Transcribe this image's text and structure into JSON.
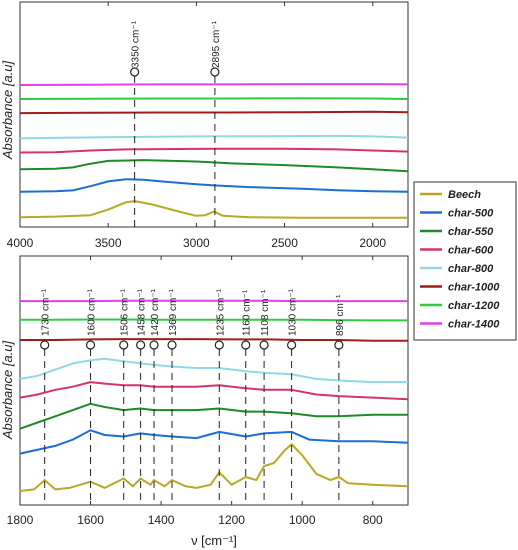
{
  "chart_data": [
    {
      "type": "line",
      "panel": "top",
      "ylabel": "Absorbance [a.u]",
      "xlabel": "",
      "xlim": [
        4000,
        1800
      ],
      "ylim": [
        0,
        8
      ],
      "xticks": [
        4000,
        3500,
        3000,
        2500,
        2000
      ],
      "annotations": [
        {
          "x": 3350,
          "label": "3350 cm⁻¹"
        },
        {
          "x": 2895,
          "label": "2895 cm⁻¹"
        }
      ],
      "series": [
        {
          "name": "Beech",
          "color": "#b8a824",
          "baseline": 0.35,
          "points": [
            [
              4000,
              0.35
            ],
            [
              3800,
              0.37
            ],
            [
              3600,
              0.42
            ],
            [
              3500,
              0.62
            ],
            [
              3400,
              0.88
            ],
            [
              3350,
              0.92
            ],
            [
              3250,
              0.8
            ],
            [
              3100,
              0.55
            ],
            [
              3000,
              0.4
            ],
            [
              2950,
              0.42
            ],
            [
              2900,
              0.55
            ],
            [
              2850,
              0.4
            ],
            [
              2700,
              0.35
            ],
            [
              2400,
              0.33
            ],
            [
              1800,
              0.33
            ]
          ]
        },
        {
          "name": "char-500",
          "color": "#1a6fd4",
          "baseline": 1.25,
          "points": [
            [
              4000,
              1.25
            ],
            [
              3800,
              1.27
            ],
            [
              3700,
              1.3
            ],
            [
              3600,
              1.45
            ],
            [
              3500,
              1.62
            ],
            [
              3400,
              1.7
            ],
            [
              3300,
              1.68
            ],
            [
              3200,
              1.62
            ],
            [
              3000,
              1.52
            ],
            [
              2900,
              1.48
            ],
            [
              2700,
              1.42
            ],
            [
              2400,
              1.36
            ],
            [
              2200,
              1.31
            ],
            [
              2000,
              1.27
            ],
            [
              1800,
              1.25
            ]
          ]
        },
        {
          "name": "char-550",
          "color": "#1f8a2a",
          "baseline": 2.05,
          "points": [
            [
              4000,
              2.05
            ],
            [
              3800,
              2.07
            ],
            [
              3700,
              2.12
            ],
            [
              3600,
              2.25
            ],
            [
              3500,
              2.35
            ],
            [
              3300,
              2.38
            ],
            [
              3000,
              2.33
            ],
            [
              2800,
              2.26
            ],
            [
              2500,
              2.2
            ],
            [
              2200,
              2.12
            ],
            [
              2000,
              2.05
            ],
            [
              1800,
              1.98
            ]
          ]
        },
        {
          "name": "char-600",
          "color": "#d6336c",
          "baseline": 2.65,
          "points": [
            [
              4000,
              2.65
            ],
            [
              3800,
              2.66
            ],
            [
              3600,
              2.72
            ],
            [
              3400,
              2.76
            ],
            [
              3200,
              2.77
            ],
            [
              2900,
              2.78
            ],
            [
              2500,
              2.78
            ],
            [
              2200,
              2.76
            ],
            [
              2000,
              2.72
            ],
            [
              1800,
              2.68
            ]
          ]
        },
        {
          "name": "char-800",
          "color": "#8fd8e8",
          "baseline": 3.15,
          "points": [
            [
              4000,
              3.15
            ],
            [
              3700,
              3.18
            ],
            [
              3400,
              3.2
            ],
            [
              3000,
              3.22
            ],
            [
              2600,
              3.23
            ],
            [
              2200,
              3.24
            ],
            [
              2000,
              3.22
            ],
            [
              1800,
              3.18
            ]
          ]
        },
        {
          "name": "char-1000",
          "color": "#a01c1c",
          "baseline": 4.05,
          "points": [
            [
              4000,
              4.05
            ],
            [
              3600,
              4.06
            ],
            [
              3200,
              4.07
            ],
            [
              2800,
              4.07
            ],
            [
              2400,
              4.08
            ],
            [
              2000,
              4.1
            ],
            [
              1800,
              4.08
            ]
          ]
        },
        {
          "name": "char-1200",
          "color": "#2ecc40",
          "baseline": 4.55,
          "points": [
            [
              4000,
              4.55
            ],
            [
              3600,
              4.56
            ],
            [
              3200,
              4.57
            ],
            [
              2800,
              4.57
            ],
            [
              2400,
              4.58
            ],
            [
              2000,
              4.57
            ],
            [
              1800,
              4.55
            ]
          ]
        },
        {
          "name": "char-1400",
          "color": "#e040e8",
          "baseline": 5.05,
          "points": [
            [
              4000,
              5.05
            ],
            [
              3600,
              5.06
            ],
            [
              3200,
              5.07
            ],
            [
              2800,
              5.07
            ],
            [
              2400,
              5.08
            ],
            [
              2000,
              5.08
            ],
            [
              1800,
              5.07
            ]
          ]
        }
      ]
    },
    {
      "type": "line",
      "panel": "bottom",
      "ylabel": "Absorbance [a.u]",
      "xlabel": "ν [cm⁻¹]",
      "xlim": [
        1800,
        700
      ],
      "ylim": [
        0,
        8
      ],
      "xticks": [
        1800,
        1600,
        1400,
        1200,
        1000,
        800
      ],
      "annotations": [
        {
          "x": 1730,
          "label": "1730 cm⁻¹"
        },
        {
          "x": 1600,
          "label": "1600 cm⁻¹"
        },
        {
          "x": 1506,
          "label": "1506 cm⁻¹"
        },
        {
          "x": 1458,
          "label": "1458 cm⁻¹"
        },
        {
          "x": 1420,
          "label": "1420 cm⁻¹"
        },
        {
          "x": 1369,
          "label": "1369 cm⁻¹"
        },
        {
          "x": 1235,
          "label": "1235 cm⁻¹"
        },
        {
          "x": 1160,
          "label": "1160 cm⁻¹"
        },
        {
          "x": 1108,
          "label": "1108 cm⁻¹"
        },
        {
          "x": 1030,
          "label": "1030 cm⁻¹"
        },
        {
          "x": 896,
          "label": "896 cm⁻¹"
        }
      ],
      "series": [
        {
          "name": "Beech",
          "color": "#b8a824",
          "points": [
            [
              1800,
              0.45
            ],
            [
              1760,
              0.5
            ],
            [
              1730,
              0.8
            ],
            [
              1700,
              0.5
            ],
            [
              1660,
              0.55
            ],
            [
              1600,
              0.75
            ],
            [
              1560,
              0.55
            ],
            [
              1506,
              0.85
            ],
            [
              1480,
              0.6
            ],
            [
              1458,
              0.85
            ],
            [
              1430,
              0.65
            ],
            [
              1420,
              0.8
            ],
            [
              1390,
              0.6
            ],
            [
              1369,
              0.8
            ],
            [
              1330,
              0.6
            ],
            [
              1300,
              0.55
            ],
            [
              1260,
              0.65
            ],
            [
              1235,
              1.05
            ],
            [
              1200,
              0.65
            ],
            [
              1160,
              0.9
            ],
            [
              1130,
              0.8
            ],
            [
              1108,
              1.25
            ],
            [
              1080,
              1.35
            ],
            [
              1050,
              1.75
            ],
            [
              1030,
              1.95
            ],
            [
              1000,
              1.6
            ],
            [
              960,
              1.0
            ],
            [
              920,
              0.8
            ],
            [
              896,
              0.9
            ],
            [
              870,
              0.7
            ],
            [
              800,
              0.65
            ],
            [
              700,
              0.6
            ]
          ]
        },
        {
          "name": "char-500",
          "color": "#1a6fd4",
          "points": [
            [
              1800,
              1.65
            ],
            [
              1760,
              1.75
            ],
            [
              1700,
              1.9
            ],
            [
              1650,
              2.1
            ],
            [
              1600,
              2.4
            ],
            [
              1560,
              2.25
            ],
            [
              1506,
              2.2
            ],
            [
              1458,
              2.3
            ],
            [
              1420,
              2.25
            ],
            [
              1369,
              2.2
            ],
            [
              1300,
              2.15
            ],
            [
              1235,
              2.35
            ],
            [
              1160,
              2.2
            ],
            [
              1108,
              2.3
            ],
            [
              1030,
              2.35
            ],
            [
              980,
              2.1
            ],
            [
              896,
              2.05
            ],
            [
              800,
              2.05
            ],
            [
              700,
              2.0
            ]
          ]
        },
        {
          "name": "char-550",
          "color": "#1f8a2a",
          "points": [
            [
              1800,
              2.45
            ],
            [
              1750,
              2.65
            ],
            [
              1700,
              2.85
            ],
            [
              1650,
              3.05
            ],
            [
              1600,
              3.25
            ],
            [
              1560,
              3.15
            ],
            [
              1506,
              3.05
            ],
            [
              1458,
              3.1
            ],
            [
              1420,
              3.05
            ],
            [
              1369,
              3.05
            ],
            [
              1300,
              3.05
            ],
            [
              1235,
              3.1
            ],
            [
              1160,
              3.0
            ],
            [
              1108,
              3.0
            ],
            [
              1030,
              2.95
            ],
            [
              960,
              2.85
            ],
            [
              896,
              2.85
            ],
            [
              800,
              2.9
            ],
            [
              700,
              2.9
            ]
          ]
        },
        {
          "name": "char-600",
          "color": "#d6336c",
          "points": [
            [
              1800,
              3.45
            ],
            [
              1750,
              3.55
            ],
            [
              1700,
              3.7
            ],
            [
              1650,
              3.8
            ],
            [
              1600,
              3.95
            ],
            [
              1560,
              3.9
            ],
            [
              1506,
              3.85
            ],
            [
              1458,
              3.85
            ],
            [
              1420,
              3.8
            ],
            [
              1369,
              3.8
            ],
            [
              1300,
              3.8
            ],
            [
              1235,
              3.85
            ],
            [
              1160,
              3.75
            ],
            [
              1108,
              3.7
            ],
            [
              1030,
              3.7
            ],
            [
              960,
              3.55
            ],
            [
              896,
              3.5
            ],
            [
              800,
              3.45
            ],
            [
              700,
              3.4
            ]
          ]
        },
        {
          "name": "char-800",
          "color": "#8fd8e8",
          "points": [
            [
              1800,
              4.05
            ],
            [
              1750,
              4.15
            ],
            [
              1700,
              4.35
            ],
            [
              1650,
              4.55
            ],
            [
              1600,
              4.65
            ],
            [
              1560,
              4.7
            ],
            [
              1506,
              4.62
            ],
            [
              1458,
              4.55
            ],
            [
              1420,
              4.5
            ],
            [
              1369,
              4.45
            ],
            [
              1300,
              4.4
            ],
            [
              1235,
              4.4
            ],
            [
              1160,
              4.3
            ],
            [
              1108,
              4.25
            ],
            [
              1030,
              4.2
            ],
            [
              960,
              4.05
            ],
            [
              896,
              4.0
            ],
            [
              800,
              3.95
            ],
            [
              700,
              3.95
            ]
          ]
        },
        {
          "name": "char-1000",
          "color": "#a01c1c",
          "points": [
            [
              1800,
              5.3
            ],
            [
              1700,
              5.3
            ],
            [
              1600,
              5.32
            ],
            [
              1500,
              5.33
            ],
            [
              1400,
              5.33
            ],
            [
              1300,
              5.33
            ],
            [
              1200,
              5.32
            ],
            [
              1100,
              5.32
            ],
            [
              1000,
              5.3
            ],
            [
              900,
              5.3
            ],
            [
              800,
              5.28
            ],
            [
              700,
              5.28
            ]
          ]
        },
        {
          "name": "char-1200",
          "color": "#2ecc40",
          "points": [
            [
              1800,
              5.95
            ],
            [
              1700,
              5.95
            ],
            [
              1600,
              5.96
            ],
            [
              1500,
              5.96
            ],
            [
              1400,
              5.95
            ],
            [
              1300,
              5.95
            ],
            [
              1200,
              5.95
            ],
            [
              1100,
              5.95
            ],
            [
              1000,
              5.95
            ],
            [
              900,
              5.94
            ],
            [
              800,
              5.93
            ],
            [
              700,
              5.93
            ]
          ]
        },
        {
          "name": "char-1400",
          "color": "#e040e8",
          "points": [
            [
              1800,
              6.55
            ],
            [
              1700,
              6.55
            ],
            [
              1600,
              6.55
            ],
            [
              1500,
              6.56
            ],
            [
              1400,
              6.56
            ],
            [
              1300,
              6.56
            ],
            [
              1200,
              6.56
            ],
            [
              1100,
              6.56
            ],
            [
              1000,
              6.55
            ],
            [
              900,
              6.55
            ],
            [
              800,
              6.55
            ],
            [
              700,
              6.55
            ]
          ]
        }
      ]
    }
  ],
  "legend": {
    "placement": "right",
    "entries": [
      {
        "label": "Beech",
        "color": "#b8a824"
      },
      {
        "label": "char-500",
        "color": "#1a6fd4"
      },
      {
        "label": "char-550",
        "color": "#1f8a2a"
      },
      {
        "label": "char-600",
        "color": "#d6336c"
      },
      {
        "label": "char-800",
        "color": "#8fd8e8"
      },
      {
        "label": "char-1000",
        "color": "#a01c1c"
      },
      {
        "label": "char-1200",
        "color": "#2ecc40"
      },
      {
        "label": "char-1400",
        "color": "#e040e8"
      }
    ]
  }
}
